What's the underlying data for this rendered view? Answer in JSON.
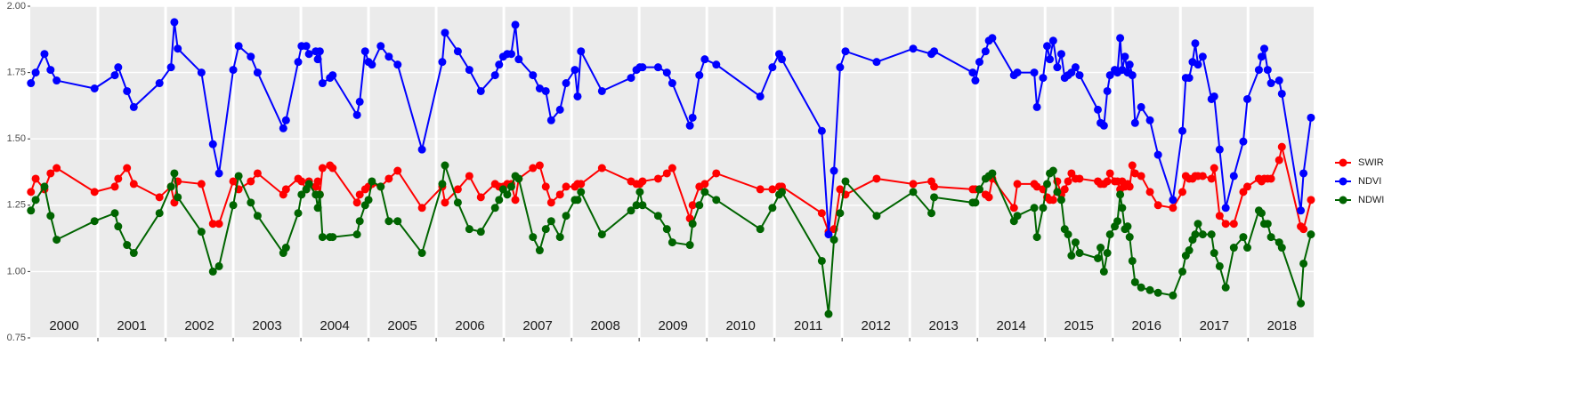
{
  "chart_data": {
    "type": "line",
    "legend": "right",
    "grid": true,
    "xlim": [
      2000,
      2018.97
    ],
    "ylim": [
      0.75,
      2.0
    ],
    "yticks": [
      0.75,
      {
        "value": 1.0,
        "label": "1.00"
      },
      1.25,
      {
        "value": 1.5,
        "label": "1.50"
      },
      1.75,
      {
        "value": 2.0,
        "label": "2.00"
      }
    ],
    "xticks": [
      {
        "value": 2000.5,
        "label": "2000"
      },
      {
        "value": 2001.5,
        "label": "2001"
      },
      {
        "value": 2002.5,
        "label": "2002"
      },
      {
        "value": 2003.5,
        "label": "2003"
      },
      {
        "value": 2004.5,
        "label": "2004"
      },
      {
        "value": 2005.5,
        "label": "2005"
      },
      {
        "value": 2006.5,
        "label": "2006"
      },
      {
        "value": 2007.5,
        "label": "2007"
      },
      {
        "value": 2008.5,
        "label": "2008"
      },
      {
        "value": 2009.5,
        "label": "2009"
      },
      {
        "value": 2010.5,
        "label": "2010"
      },
      {
        "value": 2011.5,
        "label": "2011"
      },
      {
        "value": 2012.5,
        "label": "2012"
      },
      {
        "value": 2013.5,
        "label": "2013"
      },
      {
        "value": 2014.5,
        "label": "2014"
      },
      {
        "value": 2015.5,
        "label": "2015"
      },
      {
        "value": 2016.5,
        "label": "2016"
      },
      {
        "value": 2017.5,
        "label": "2017"
      },
      {
        "value": 2018.5,
        "label": "2018"
      }
    ],
    "x_grid": [
      2001,
      2002,
      2003,
      2004,
      2005,
      2006,
      2007,
      2008,
      2009,
      2010,
      2011,
      2012,
      2013,
      2014,
      2015,
      2016,
      2017,
      2018
    ],
    "x": [
      2000.01,
      2000.08,
      2000.21,
      2000.3,
      2000.39,
      2000.95,
      2001.25,
      2001.3,
      2001.43,
      2001.53,
      2001.91,
      2002.08,
      2002.13,
      2002.18,
      2002.53,
      2002.7,
      2002.79,
      2003.0,
      2003.08,
      2003.26,
      2003.36,
      2003.74,
      2003.78,
      2003.96,
      2004.01,
      2004.08,
      2004.12,
      2004.22,
      2004.25,
      2004.28,
      2004.32,
      2004.43,
      2004.47,
      2004.83,
      2004.87,
      2004.95,
      2005.0,
      2005.05,
      2005.18,
      2005.3,
      2005.43,
      2005.79,
      2006.09,
      2006.13,
      2006.32,
      2006.49,
      2006.66,
      2006.87,
      2006.93,
      2006.99,
      2007.05,
      2007.11,
      2007.17,
      2007.22,
      2007.43,
      2007.53,
      2007.62,
      2007.7,
      2007.83,
      2007.92,
      2008.05,
      2008.09,
      2008.14,
      2008.45,
      2008.88,
      2008.96,
      2009.01,
      2009.05,
      2009.28,
      2009.41,
      2009.49,
      2009.75,
      2009.79,
      2009.89,
      2009.97,
      2010.14,
      2010.79,
      2010.97,
      2011.07,
      2011.11,
      2011.7,
      2011.8,
      2011.88,
      2011.97,
      2012.05,
      2012.51,
      2013.05,
      2013.32,
      2013.36,
      2013.93,
      2013.97,
      2014.03,
      2014.12,
      2014.17,
      2014.22,
      2014.54,
      2014.59,
      2014.84,
      2014.88,
      2014.97,
      2015.03,
      2015.07,
      2015.12,
      2015.18,
      2015.24,
      2015.29,
      2015.34,
      2015.39,
      2015.45,
      2015.51,
      2015.78,
      2015.82,
      2015.87,
      2015.92,
      2015.96,
      2016.03,
      2016.07,
      2016.11,
      2016.14,
      2016.18,
      2016.22,
      2016.25,
      2016.29,
      2016.33,
      2016.42,
      2016.55,
      2016.67,
      2016.89,
      2017.03,
      2017.08,
      2017.13,
      2017.18,
      2017.22,
      2017.26,
      2017.33,
      2017.46,
      2017.5,
      2017.58,
      2017.67,
      2017.79,
      2017.93,
      2017.99,
      2018.16,
      2018.2,
      2018.24,
      2018.29,
      2018.34,
      2018.46,
      2018.5,
      2018.78,
      2018.82,
      2018.93
    ],
    "series": [
      {
        "name": "SWIR",
        "color": "#ff0000",
        "values": [
          1.3,
          1.35,
          1.31,
          1.37,
          1.39,
          1.3,
          1.32,
          1.35,
          1.39,
          1.33,
          1.28,
          1.32,
          1.26,
          1.34,
          1.33,
          1.18,
          1.18,
          1.34,
          1.31,
          1.34,
          1.37,
          1.29,
          1.31,
          1.35,
          1.34,
          1.31,
          1.34,
          1.32,
          1.34,
          1.29,
          1.39,
          1.4,
          1.39,
          1.26,
          1.29,
          1.31,
          1.32,
          1.33,
          1.32,
          1.35,
          1.38,
          1.24,
          1.32,
          1.26,
          1.31,
          1.36,
          1.28,
          1.33,
          1.32,
          1.32,
          1.33,
          1.33,
          1.27,
          1.35,
          1.39,
          1.4,
          1.32,
          1.26,
          1.29,
          1.32,
          1.32,
          1.33,
          1.33,
          1.39,
          1.34,
          1.33,
          1.33,
          1.34,
          1.35,
          1.37,
          1.39,
          1.2,
          1.25,
          1.32,
          1.33,
          1.37,
          1.31,
          1.31,
          1.32,
          1.32,
          1.22,
          1.15,
          1.16,
          1.31,
          1.29,
          1.35,
          1.33,
          1.34,
          1.32,
          1.31,
          1.31,
          1.31,
          1.29,
          1.28,
          1.35,
          1.24,
          1.33,
          1.33,
          1.32,
          1.31,
          1.28,
          1.27,
          1.27,
          1.34,
          1.29,
          1.31,
          1.34,
          1.37,
          1.35,
          1.35,
          1.34,
          1.33,
          1.33,
          1.34,
          1.37,
          1.34,
          1.34,
          1.31,
          1.34,
          1.32,
          1.33,
          1.32,
          1.4,
          1.37,
          1.36,
          1.3,
          1.25,
          1.24,
          1.3,
          1.36,
          1.35,
          1.35,
          1.36,
          1.36,
          1.36,
          1.35,
          1.39,
          1.21,
          1.18,
          1.18,
          1.3,
          1.32,
          1.35,
          1.34,
          1.35,
          1.35,
          1.35,
          1.42,
          1.47,
          1.17,
          1.16,
          1.27
        ]
      },
      {
        "name": "NDVI",
        "color": "#0000ff",
        "values": [
          1.71,
          1.75,
          1.82,
          1.76,
          1.72,
          1.69,
          1.74,
          1.77,
          1.68,
          1.62,
          1.71,
          1.77,
          1.94,
          1.84,
          1.75,
          1.48,
          1.37,
          1.76,
          1.85,
          1.81,
          1.75,
          1.54,
          1.57,
          1.79,
          1.85,
          1.85,
          1.82,
          1.83,
          1.8,
          1.83,
          1.71,
          1.73,
          1.74,
          1.59,
          1.64,
          1.83,
          1.79,
          1.78,
          1.85,
          1.81,
          1.78,
          1.46,
          1.79,
          1.9,
          1.83,
          1.76,
          1.68,
          1.74,
          1.78,
          1.81,
          1.82,
          1.82,
          1.93,
          1.8,
          1.74,
          1.69,
          1.68,
          1.57,
          1.61,
          1.71,
          1.76,
          1.66,
          1.83,
          1.68,
          1.73,
          1.76,
          1.77,
          1.77,
          1.77,
          1.75,
          1.71,
          1.55,
          1.58,
          1.74,
          1.8,
          1.78,
          1.66,
          1.77,
          1.82,
          1.8,
          1.53,
          1.14,
          1.38,
          1.77,
          1.83,
          1.79,
          1.84,
          1.82,
          1.83,
          1.75,
          1.72,
          1.79,
          1.83,
          1.87,
          1.88,
          1.74,
          1.75,
          1.75,
          1.62,
          1.73,
          1.85,
          1.8,
          1.87,
          1.77,
          1.82,
          1.73,
          1.74,
          1.75,
          1.77,
          1.74,
          1.61,
          1.56,
          1.55,
          1.68,
          1.74,
          1.76,
          1.75,
          1.88,
          1.76,
          1.81,
          1.75,
          1.78,
          1.74,
          1.56,
          1.62,
          1.57,
          1.44,
          1.27,
          1.53,
          1.73,
          1.73,
          1.79,
          1.86,
          1.78,
          1.81,
          1.65,
          1.66,
          1.46,
          1.24,
          1.36,
          1.49,
          1.65,
          1.76,
          1.81,
          1.84,
          1.76,
          1.71,
          1.72,
          1.67,
          1.23,
          1.37,
          1.58
        ]
      },
      {
        "name": "NDWI",
        "color": "#006400",
        "values": [
          1.23,
          1.27,
          1.32,
          1.21,
          1.12,
          1.19,
          1.22,
          1.17,
          1.1,
          1.07,
          1.22,
          1.32,
          1.37,
          1.28,
          1.15,
          1.0,
          1.02,
          1.25,
          1.36,
          1.26,
          1.21,
          1.07,
          1.09,
          1.22,
          1.29,
          1.31,
          1.33,
          1.29,
          1.24,
          1.29,
          1.13,
          1.13,
          1.13,
          1.14,
          1.19,
          1.25,
          1.27,
          1.34,
          1.32,
          1.19,
          1.19,
          1.07,
          1.33,
          1.4,
          1.26,
          1.16,
          1.15,
          1.24,
          1.27,
          1.31,
          1.29,
          1.32,
          1.36,
          1.35,
          1.13,
          1.08,
          1.16,
          1.19,
          1.13,
          1.21,
          1.27,
          1.27,
          1.3,
          1.14,
          1.23,
          1.25,
          1.3,
          1.25,
          1.21,
          1.16,
          1.11,
          1.1,
          1.18,
          1.25,
          1.3,
          1.27,
          1.16,
          1.24,
          1.29,
          1.3,
          1.04,
          0.84,
          1.12,
          1.22,
          1.34,
          1.21,
          1.3,
          1.22,
          1.28,
          1.26,
          1.26,
          1.31,
          1.35,
          1.36,
          1.37,
          1.19,
          1.21,
          1.24,
          1.13,
          1.24,
          1.33,
          1.37,
          1.38,
          1.3,
          1.27,
          1.16,
          1.14,
          1.06,
          1.11,
          1.07,
          1.05,
          1.09,
          1.0,
          1.07,
          1.14,
          1.17,
          1.19,
          1.29,
          1.24,
          1.16,
          1.17,
          1.13,
          1.04,
          0.96,
          0.94,
          0.93,
          0.92,
          0.91,
          1.0,
          1.06,
          1.08,
          1.12,
          1.14,
          1.18,
          1.14,
          1.14,
          1.07,
          1.02,
          0.94,
          1.09,
          1.13,
          1.09,
          1.23,
          1.22,
          1.18,
          1.18,
          1.13,
          1.11,
          1.09,
          0.88,
          1.03,
          1.14
        ]
      }
    ]
  }
}
